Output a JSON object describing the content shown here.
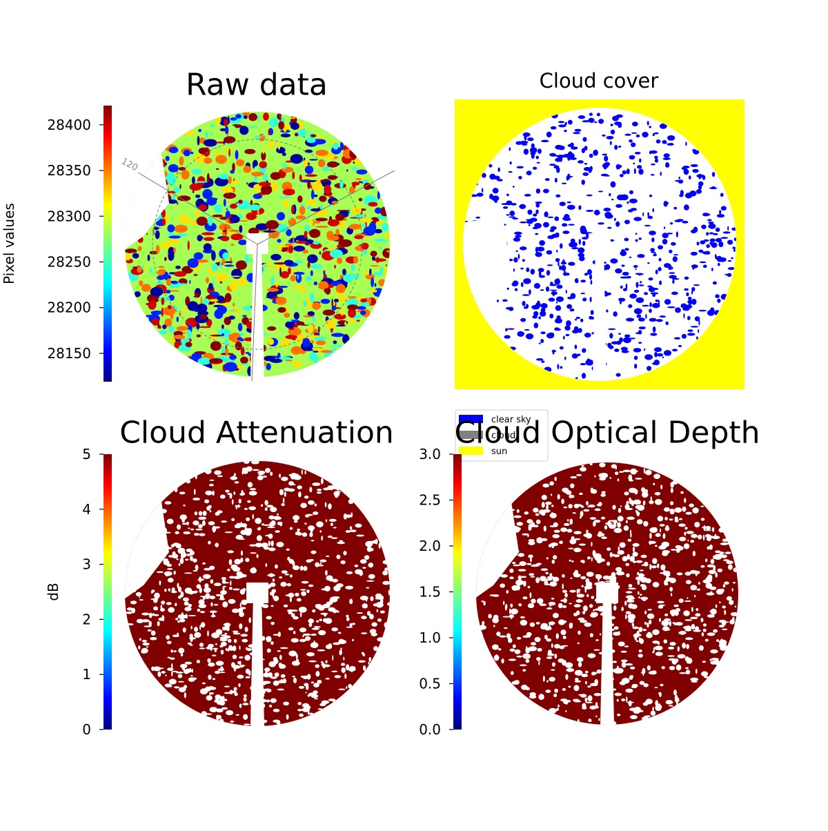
{
  "chart_data": [
    {
      "type": "image",
      "title": "Raw data",
      "colorbar": {
        "label": "Pixel values",
        "colormap": "jet",
        "lim": [
          28119,
          28421
        ],
        "ticks": [
          28150,
          28200,
          28250,
          28300,
          28350,
          28400
        ]
      },
      "annotations": [
        "120"
      ]
    },
    {
      "type": "image",
      "title": "Cloud cover",
      "legend": [
        {
          "name": "clear sky",
          "color": "#0000ff"
        },
        {
          "name": "cloud",
          "color": "#808080"
        },
        {
          "name": "sun",
          "color": "#ffff00"
        }
      ]
    },
    {
      "type": "image",
      "title": "Cloud Attenuation",
      "colorbar": {
        "label": "dB",
        "colormap": "jet",
        "lim": [
          0,
          5
        ],
        "ticks": [
          0,
          1,
          2,
          3,
          4,
          5
        ]
      }
    },
    {
      "type": "image",
      "title": "Cloud Optical Depth",
      "colorbar": {
        "colormap": "jet",
        "lim": [
          0,
          3
        ],
        "ticks": [
          {
            "value": 0,
            "label": "0.0"
          },
          0.5,
          {
            "value": 1,
            "label": "1.0"
          },
          1.5,
          {
            "value": 2,
            "label": "2.0"
          },
          2.5,
          {
            "value": 3,
            "label": "3.0"
          }
        ]
      }
    }
  ]
}
